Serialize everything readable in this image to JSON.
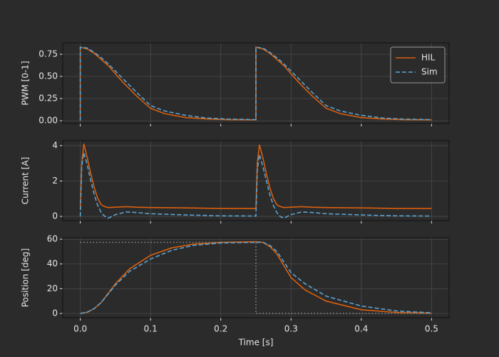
{
  "chart_data": [
    {
      "type": "line",
      "ylabel": "PWM [0-1]",
      "legend": "upper right",
      "grid": true,
      "show_xtick_labels": false,
      "xlim": [
        -0.025,
        0.525
      ],
      "ylim": [
        -0.032,
        0.879
      ],
      "xticks": [
        {
          "value": 0,
          "label": "0.0"
        },
        0.1,
        0.2,
        0.3,
        0.4,
        0.5
      ],
      "yticks": [
        {
          "value": 0,
          "label": "0.00"
        },
        {
          "value": 0.25,
          "label": "0.25"
        },
        {
          "value": 0.5,
          "label": "0.50"
        },
        {
          "value": 0.75,
          "label": "0.75"
        }
      ],
      "x": [
        0,
        0,
        0.01,
        0.02,
        0.03,
        0.04,
        0.05,
        0.06,
        0.08,
        0.1,
        0.12,
        0.15,
        0.18,
        0.21,
        0.25,
        0.25,
        0.26,
        0.27,
        0.28,
        0.29,
        0.3,
        0.31,
        0.33,
        0.35,
        0.37,
        0.4,
        0.43,
        0.46,
        0.5
      ],
      "series": [
        {
          "name": "HIL",
          "color": "#d95f0e",
          "style": "solid",
          "values": [
            0,
            0.83,
            0.81,
            0.76,
            0.69,
            0.62,
            0.53,
            0.44,
            0.28,
            0.14,
            0.08,
            0.035,
            0.02,
            0.012,
            0.01,
            0.83,
            0.81,
            0.76,
            0.69,
            0.62,
            0.53,
            0.44,
            0.28,
            0.14,
            0.08,
            0.035,
            0.02,
            0.012,
            0.01
          ]
        },
        {
          "name": "Sim",
          "color": "#5ba3d0",
          "style": "dashed",
          "values": [
            0,
            0.83,
            0.82,
            0.77,
            0.71,
            0.64,
            0.56,
            0.48,
            0.32,
            0.17,
            0.11,
            0.06,
            0.03,
            0.018,
            0.012,
            0.83,
            0.82,
            0.77,
            0.71,
            0.64,
            0.56,
            0.48,
            0.32,
            0.17,
            0.11,
            0.06,
            0.03,
            0.018,
            0.012
          ]
        }
      ]
    },
    {
      "type": "line",
      "ylabel": "Current [A]",
      "grid": true,
      "show_xtick_labels": false,
      "xlim": [
        -0.025,
        0.525
      ],
      "ylim": [
        -0.24,
        4.28
      ],
      "xticks": [
        {
          "value": 0,
          "label": "0.0"
        },
        0.1,
        0.2,
        0.3,
        0.4,
        0.5
      ],
      "yticks": [
        0,
        2,
        4
      ],
      "x": [
        0,
        0.002,
        0.005,
        0.01,
        0.015,
        0.02,
        0.025,
        0.03,
        0.035,
        0.04,
        0.05,
        0.065,
        0.08,
        0.1,
        0.15,
        0.2,
        0.25,
        0.252,
        0.255,
        0.26,
        0.265,
        0.27,
        0.275,
        0.28,
        0.285,
        0.29,
        0.3,
        0.315,
        0.33,
        0.35,
        0.4,
        0.45,
        0.5
      ],
      "series": [
        {
          "name": "HIL",
          "color": "#d95f0e",
          "style": "solid",
          "values": [
            0.4,
            3.0,
            4.1,
            3.3,
            2.4,
            1.6,
            1.0,
            0.65,
            0.55,
            0.5,
            0.52,
            0.55,
            0.52,
            0.5,
            0.48,
            0.45,
            0.45,
            3.0,
            4.05,
            3.3,
            2.4,
            1.6,
            1.0,
            0.65,
            0.55,
            0.5,
            0.52,
            0.55,
            0.52,
            0.5,
            0.48,
            0.45,
            0.45
          ]
        },
        {
          "name": "Sim",
          "color": "#5ba3d0",
          "style": "dashed",
          "values": [
            0,
            2.8,
            3.6,
            2.9,
            2.0,
            1.2,
            0.6,
            0.2,
            0.0,
            -0.1,
            0.1,
            0.25,
            0.22,
            0.15,
            0.08,
            0.03,
            0.02,
            2.6,
            3.5,
            2.8,
            2.0,
            1.2,
            0.6,
            0.2,
            -0.02,
            -0.1,
            0.1,
            0.25,
            0.22,
            0.15,
            0.08,
            0.03,
            0.02
          ]
        }
      ]
    },
    {
      "type": "line",
      "ylabel": "Position [deg]",
      "xlabel": "Time [s]",
      "grid": true,
      "show_xtick_labels": true,
      "xlim": [
        -0.025,
        0.525
      ],
      "ylim": [
        -3.46,
        61.2
      ],
      "xticks": [
        {
          "value": 0,
          "label": "0.0"
        },
        0.1,
        0.2,
        0.3,
        0.4,
        0.5
      ],
      "yticks": [
        0,
        20,
        40,
        60
      ],
      "x": [
        0,
        0.01,
        0.02,
        0.03,
        0.05,
        0.07,
        0.1,
        0.13,
        0.16,
        0.2,
        0.25,
        0.26,
        0.27,
        0.28,
        0.3,
        0.32,
        0.35,
        0.4,
        0.45,
        0.5
      ],
      "series": [
        {
          "name": "HIL",
          "color": "#d95f0e",
          "style": "solid",
          "values": [
            0,
            1,
            4,
            9,
            24,
            36,
            47,
            53,
            56,
            57.5,
            58,
            57.5,
            54,
            48,
            29,
            19,
            10,
            3,
            0.8,
            0.2
          ]
        },
        {
          "name": "Sim",
          "color": "#5ba3d0",
          "style": "dashed",
          "values": [
            0,
            1,
            4,
            9,
            23,
            34,
            44,
            51,
            55,
            57,
            57.5,
            57.5,
            55,
            50,
            33,
            24,
            14,
            6,
            2,
            0.5
          ]
        },
        {
          "color": "#8c8c8c",
          "style": "dotted",
          "x": [
            0,
            0.25,
            0.25,
            0.5
          ],
          "values": [
            57.5,
            57.5,
            0,
            0
          ]
        }
      ]
    }
  ]
}
